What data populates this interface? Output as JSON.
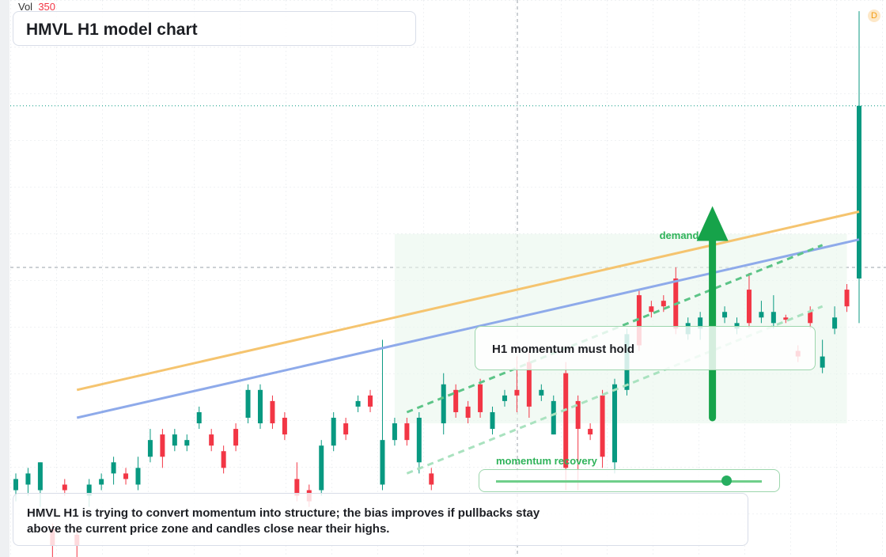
{
  "chart_data": {
    "type": "candlestick",
    "title": "HMVL H1 model chart",
    "volume_label": "Vol",
    "volume_value": "350",
    "badge": "D",
    "ylim": [
      0,
      100
    ],
    "up_color": "#089981",
    "down_color": "#f23645",
    "candles": [
      [
        12,
        15,
        10,
        14
      ],
      [
        13,
        16,
        11,
        15
      ],
      [
        12,
        17,
        9,
        17
      ],
      [
        5,
        6,
        0,
        2
      ],
      [
        13,
        14,
        11,
        12
      ],
      [
        4,
        5,
        0,
        2
      ],
      [
        11,
        14,
        9,
        13
      ],
      [
        13,
        15,
        12,
        14
      ],
      [
        15,
        18,
        13,
        17
      ],
      [
        15,
        16,
        13,
        14
      ],
      [
        13,
        18,
        12,
        16
      ],
      [
        18,
        23,
        17,
        21
      ],
      [
        22,
        23,
        16,
        18
      ],
      [
        20,
        23,
        19,
        22
      ],
      [
        20,
        22,
        19,
        21
      ],
      [
        24,
        27,
        23,
        26
      ],
      [
        22,
        23,
        19,
        20
      ],
      [
        19,
        20,
        15,
        16
      ],
      [
        23,
        24,
        19,
        20
      ],
      [
        25,
        31,
        24,
        30
      ],
      [
        24,
        31,
        23,
        30
      ],
      [
        28,
        29,
        23,
        24
      ],
      [
        25,
        26,
        21,
        22
      ],
      [
        14,
        17,
        10,
        11
      ],
      [
        12,
        13,
        9,
        10
      ],
      [
        12,
        21,
        11,
        20
      ],
      [
        20,
        26,
        19,
        25
      ],
      [
        24,
        25,
        21,
        22
      ],
      [
        27,
        29,
        26,
        28
      ],
      [
        29,
        30,
        26,
        27
      ],
      [
        13,
        39,
        12,
        21
      ],
      [
        21,
        25,
        20,
        24
      ],
      [
        24,
        25,
        20,
        21
      ],
      [
        17,
        26,
        15,
        25
      ],
      [
        15,
        16,
        12,
        13
      ],
      [
        24,
        33,
        22,
        31
      ],
      [
        30,
        31,
        25,
        26
      ],
      [
        27,
        28,
        24,
        25
      ],
      [
        31,
        32,
        25,
        26
      ],
      [
        23,
        27,
        22,
        26
      ],
      [
        28,
        30,
        27,
        29
      ],
      [
        30,
        36,
        26,
        29
      ],
      [
        35,
        37,
        25,
        27
      ],
      [
        29,
        31,
        28,
        30
      ],
      [
        22,
        29,
        22,
        28
      ],
      [
        33,
        35,
        12,
        16
      ],
      [
        28,
        29,
        12,
        23
      ],
      [
        23,
        24,
        21,
        22
      ],
      [
        29,
        30,
        16,
        18
      ],
      [
        17,
        32,
        15,
        31
      ],
      [
        30,
        41,
        29,
        40
      ],
      [
        47,
        48,
        37,
        38
      ],
      [
        45,
        46,
        43,
        44
      ],
      [
        46,
        47,
        44,
        45
      ],
      [
        50,
        52,
        40,
        41
      ],
      [
        40,
        43,
        39,
        42
      ],
      [
        41,
        44,
        39,
        43
      ],
      [
        42,
        47,
        41,
        46
      ],
      [
        43,
        45,
        42,
        44
      ],
      [
        41,
        43,
        40,
        42
      ],
      [
        48,
        51,
        41,
        42
      ],
      [
        43,
        46,
        42,
        44
      ],
      [
        42,
        47,
        41,
        44
      ],
      [
        43,
        43.5,
        42,
        42.6
      ],
      [
        37,
        38,
        35,
        36
      ],
      [
        44,
        45,
        41,
        42
      ],
      [
        34,
        39,
        33,
        36
      ],
      [
        41,
        45,
        40,
        43
      ],
      [
        48,
        49,
        44,
        45
      ],
      [
        50,
        98,
        42,
        81
      ]
    ],
    "lines": [
      {
        "color": "#f5c46f",
        "from": [
          5,
          30
        ],
        "to": [
          69,
          62
        ]
      },
      {
        "color": "#8eaaea",
        "from": [
          5,
          25
        ],
        "to": [
          69,
          57
        ]
      },
      {
        "color": "#5cc487",
        "dashed": true,
        "from": [
          32,
          26
        ],
        "to": [
          66,
          56
        ]
      },
      {
        "color": "#a9e2bf",
        "dashed": true,
        "from": [
          32,
          15
        ],
        "to": [
          66,
          45
        ]
      }
    ],
    "zone": {
      "label": "demand zone",
      "from": 31,
      "to": 68,
      "top": 58,
      "bottom": 24
    },
    "arrow": {
      "at": 57,
      "from": 25,
      "to": 63,
      "color": "#16a34a"
    },
    "annotations": {
      "hold": "H1 momentum must hold",
      "recovery": "momentum recovery",
      "note": "HMVL H1 is trying to convert momentum into structure; the bias improves if pullbacks stay above the current price zone and candles close near their highs."
    }
  }
}
